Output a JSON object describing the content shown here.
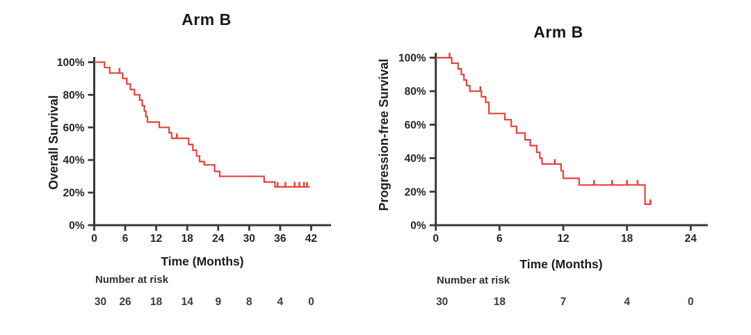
{
  "chart_data": {
    "figure": "Kaplan-Meier survival curves, Arm B",
    "charts": [
      {
        "type": "line",
        "title": "Arm B",
        "ylabel": "Overall Survival",
        "xlabel": "Time (Months)",
        "color": "#e6423d",
        "axis_color": "#383838",
        "xlim": [
          0,
          46
        ],
        "ylim": [
          0,
          100
        ],
        "x_ticks": [
          0,
          6,
          12,
          18,
          24,
          30,
          36,
          42
        ],
        "y_ticks": [
          0,
          20,
          40,
          60,
          80,
          100
        ],
        "y_tick_suffix": "%",
        "grid": false,
        "km_steps": [
          [
            0,
            100
          ],
          [
            2,
            96.7
          ],
          [
            3,
            93.3
          ],
          [
            5.5,
            90
          ],
          [
            6.3,
            86.7
          ],
          [
            7,
            83.3
          ],
          [
            7.8,
            80
          ],
          [
            8.8,
            76.7
          ],
          [
            9.3,
            73.3
          ],
          [
            9.7,
            70
          ],
          [
            10,
            66.7
          ],
          [
            10.3,
            63.3
          ],
          [
            12.6,
            60
          ],
          [
            14.5,
            56.7
          ],
          [
            15,
            53.3
          ],
          [
            18.3,
            49.5
          ],
          [
            19.1,
            46
          ],
          [
            19.8,
            42.5
          ],
          [
            20.4,
            39
          ],
          [
            21.3,
            37
          ],
          [
            23.3,
            33
          ],
          [
            24.3,
            30
          ],
          [
            32.9,
            26.5
          ],
          [
            35,
            23.5
          ]
        ],
        "curve_end": 41.7,
        "censor_marks": [
          [
            4.9,
            93.3
          ],
          [
            16,
            53.3
          ],
          [
            35.5,
            23.5
          ],
          [
            37,
            23.5
          ],
          [
            38.8,
            23.5
          ],
          [
            39.7,
            23.5
          ],
          [
            40.6,
            23.5
          ],
          [
            41.2,
            23.5
          ]
        ],
        "number_at_risk": {
          "label": "Number at risk",
          "times": [
            0,
            6,
            12,
            18,
            24,
            30,
            36,
            42
          ],
          "values": [
            "30",
            "26",
            "18",
            "14",
            "9",
            "8",
            "4",
            "0"
          ]
        }
      },
      {
        "type": "line",
        "title": "Arm B",
        "ylabel": "Progression-free Survival",
        "xlabel": "Time (Months)",
        "color": "#e6423d",
        "axis_color": "#383838",
        "xlim": [
          0,
          25.5
        ],
        "ylim": [
          0,
          100
        ],
        "x_ticks": [
          0,
          6,
          12,
          18,
          24
        ],
        "y_ticks": [
          0,
          20,
          40,
          60,
          80,
          100
        ],
        "y_tick_suffix": "%",
        "grid": false,
        "km_steps": [
          [
            0,
            100
          ],
          [
            1.5,
            96.7
          ],
          [
            2.1,
            93.3
          ],
          [
            2.4,
            90
          ],
          [
            2.65,
            86.7
          ],
          [
            2.9,
            83.3
          ],
          [
            3.2,
            80
          ],
          [
            4.3,
            76.7
          ],
          [
            4.7,
            73.3
          ],
          [
            5,
            66.7
          ],
          [
            6.5,
            63
          ],
          [
            7.1,
            59
          ],
          [
            7.6,
            55
          ],
          [
            8.4,
            51
          ],
          [
            8.9,
            47.5
          ],
          [
            9.5,
            43.5
          ],
          [
            9.8,
            40
          ],
          [
            10,
            36.5
          ],
          [
            11.8,
            32.5
          ],
          [
            12,
            28
          ],
          [
            13.5,
            24
          ],
          [
            19.7,
            12.5
          ]
        ],
        "curve_end": 20.3,
        "censor_marks": [
          [
            1.3,
            100
          ],
          [
            4.2,
            80
          ],
          [
            11.2,
            36.5
          ],
          [
            14.9,
            24
          ],
          [
            16.6,
            24
          ],
          [
            18,
            24
          ],
          [
            19,
            24
          ],
          [
            20.2,
            12.5
          ]
        ],
        "number_at_risk": {
          "label": "Number at risk",
          "times": [
            0,
            6,
            12,
            18,
            24
          ],
          "values": [
            "30",
            "18",
            "7",
            "4",
            "0"
          ]
        }
      }
    ]
  }
}
